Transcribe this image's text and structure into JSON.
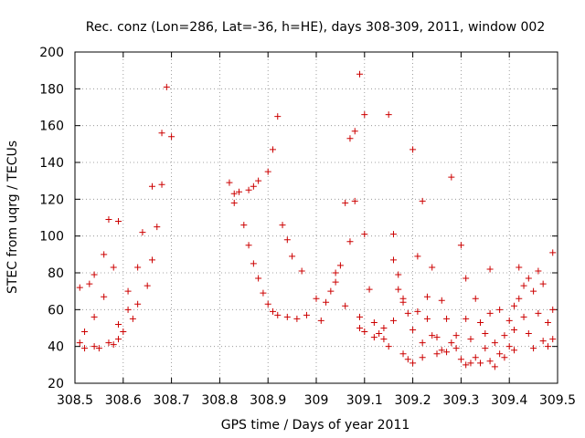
{
  "chart_data": {
    "type": "scatter",
    "title": "Rec. conz (Lon=286, Lat=-36, h=HE), days 308-309, 2011, window 002",
    "xlabel": "GPS time / Days of year 2011",
    "ylabel": "STEC from uqrg / TECUs",
    "xlim": [
      308.5,
      309.5
    ],
    "ylim": [
      20,
      200
    ],
    "x_ticks": [
      308.5,
      308.6,
      308.7,
      308.8,
      308.9,
      309,
      309.1,
      309.2,
      309.3,
      309.4,
      309.5
    ],
    "x_tick_labels": [
      "308.5",
      "308.6",
      "308.7",
      "308.8",
      "308.9",
      "309",
      "309.1",
      "309.2",
      "309.3",
      "309.4",
      "309.5"
    ],
    "y_ticks": [
      20,
      40,
      60,
      80,
      100,
      120,
      140,
      160,
      180,
      200
    ],
    "y_tick_labels": [
      "20",
      "40",
      "60",
      "80",
      "100",
      "120",
      "140",
      "160",
      "180",
      "200"
    ],
    "grid": true,
    "marker": "plus",
    "color": "#cc0000",
    "points": [
      [
        308.51,
        42
      ],
      [
        308.51,
        72
      ],
      [
        308.52,
        48
      ],
      [
        308.52,
        39
      ],
      [
        308.53,
        74
      ],
      [
        308.54,
        56
      ],
      [
        308.54,
        79
      ],
      [
        308.54,
        40
      ],
      [
        308.55,
        39
      ],
      [
        308.56,
        90
      ],
      [
        308.56,
        67
      ],
      [
        308.57,
        42
      ],
      [
        308.57,
        109
      ],
      [
        308.58,
        83
      ],
      [
        308.58,
        41
      ],
      [
        308.59,
        108
      ],
      [
        308.59,
        52
      ],
      [
        308.59,
        44
      ],
      [
        308.6,
        48
      ],
      [
        308.61,
        60
      ],
      [
        308.61,
        70
      ],
      [
        308.62,
        55
      ],
      [
        308.63,
        63
      ],
      [
        308.63,
        83
      ],
      [
        308.64,
        102
      ],
      [
        308.65,
        73
      ],
      [
        308.66,
        87
      ],
      [
        308.66,
        127
      ],
      [
        308.67,
        105
      ],
      [
        308.68,
        156
      ],
      [
        308.68,
        128
      ],
      [
        308.69,
        181
      ],
      [
        308.7,
        154
      ],
      [
        308.82,
        129
      ],
      [
        308.83,
        118
      ],
      [
        308.83,
        123
      ],
      [
        308.84,
        124
      ],
      [
        308.85,
        106
      ],
      [
        308.86,
        125
      ],
      [
        308.86,
        95
      ],
      [
        308.87,
        127
      ],
      [
        308.87,
        85
      ],
      [
        308.88,
        130
      ],
      [
        308.88,
        77
      ],
      [
        308.89,
        69
      ],
      [
        308.9,
        135
      ],
      [
        308.9,
        63
      ],
      [
        308.91,
        147
      ],
      [
        308.91,
        59
      ],
      [
        308.92,
        165
      ],
      [
        308.92,
        57
      ],
      [
        308.93,
        106
      ],
      [
        308.94,
        56
      ],
      [
        308.94,
        98
      ],
      [
        308.95,
        89
      ],
      [
        308.96,
        55
      ],
      [
        308.97,
        81
      ],
      [
        308.98,
        57
      ],
      [
        309.0,
        66
      ],
      [
        309.01,
        54
      ],
      [
        309.02,
        64
      ],
      [
        309.03,
        70
      ],
      [
        309.04,
        75
      ],
      [
        309.04,
        80
      ],
      [
        309.05,
        84
      ],
      [
        309.06,
        118
      ],
      [
        309.06,
        62
      ],
      [
        309.07,
        97
      ],
      [
        309.07,
        153
      ],
      [
        309.08,
        157
      ],
      [
        309.08,
        119
      ],
      [
        309.09,
        188
      ],
      [
        309.09,
        50
      ],
      [
        309.09,
        56
      ],
      [
        309.1,
        166
      ],
      [
        309.1,
        101
      ],
      [
        309.1,
        48
      ],
      [
        309.11,
        71
      ],
      [
        309.12,
        45
      ],
      [
        309.12,
        53
      ],
      [
        309.13,
        47
      ],
      [
        309.14,
        50
      ],
      [
        309.14,
        44
      ],
      [
        309.15,
        166
      ],
      [
        309.15,
        40
      ],
      [
        309.16,
        87
      ],
      [
        309.16,
        54
      ],
      [
        309.16,
        101
      ],
      [
        309.17,
        79
      ],
      [
        309.17,
        71
      ],
      [
        309.18,
        36
      ],
      [
        309.18,
        64
      ],
      [
        309.18,
        66
      ],
      [
        309.19,
        33
      ],
      [
        309.19,
        58
      ],
      [
        309.2,
        147
      ],
      [
        309.2,
        49
      ],
      [
        309.2,
        31
      ],
      [
        309.21,
        89
      ],
      [
        309.21,
        59
      ],
      [
        309.22,
        119
      ],
      [
        309.22,
        42
      ],
      [
        309.22,
        34
      ],
      [
        309.23,
        67
      ],
      [
        309.23,
        55
      ],
      [
        309.24,
        83
      ],
      [
        309.24,
        46
      ],
      [
        309.25,
        36
      ],
      [
        309.25,
        45
      ],
      [
        309.26,
        38
      ],
      [
        309.26,
        65
      ],
      [
        309.27,
        55
      ],
      [
        309.27,
        37
      ],
      [
        309.28,
        132
      ],
      [
        309.28,
        42
      ],
      [
        309.29,
        46
      ],
      [
        309.29,
        39
      ],
      [
        309.3,
        95
      ],
      [
        309.3,
        33
      ],
      [
        309.31,
        30
      ],
      [
        309.31,
        77
      ],
      [
        309.31,
        55
      ],
      [
        309.32,
        31
      ],
      [
        309.32,
        44
      ],
      [
        309.33,
        34
      ],
      [
        309.33,
        66
      ],
      [
        309.34,
        53
      ],
      [
        309.34,
        31
      ],
      [
        309.35,
        47
      ],
      [
        309.35,
        39
      ],
      [
        309.36,
        82
      ],
      [
        309.36,
        58
      ],
      [
        309.36,
        32
      ],
      [
        309.37,
        42
      ],
      [
        309.37,
        29
      ],
      [
        309.38,
        36
      ],
      [
        309.38,
        60
      ],
      [
        309.39,
        46
      ],
      [
        309.39,
        34
      ],
      [
        309.4,
        54
      ],
      [
        309.4,
        40
      ],
      [
        309.41,
        62
      ],
      [
        309.41,
        49
      ],
      [
        309.41,
        38
      ],
      [
        309.42,
        83
      ],
      [
        309.42,
        66
      ],
      [
        309.43,
        56
      ],
      [
        309.43,
        73
      ],
      [
        309.44,
        47
      ],
      [
        309.44,
        77
      ],
      [
        309.45,
        70
      ],
      [
        309.45,
        39
      ],
      [
        309.46,
        81
      ],
      [
        309.46,
        58
      ],
      [
        309.47,
        43
      ],
      [
        309.47,
        74
      ],
      [
        309.48,
        53
      ],
      [
        309.48,
        40
      ],
      [
        309.49,
        91
      ],
      [
        309.49,
        60
      ],
      [
        309.49,
        44
      ]
    ]
  }
}
